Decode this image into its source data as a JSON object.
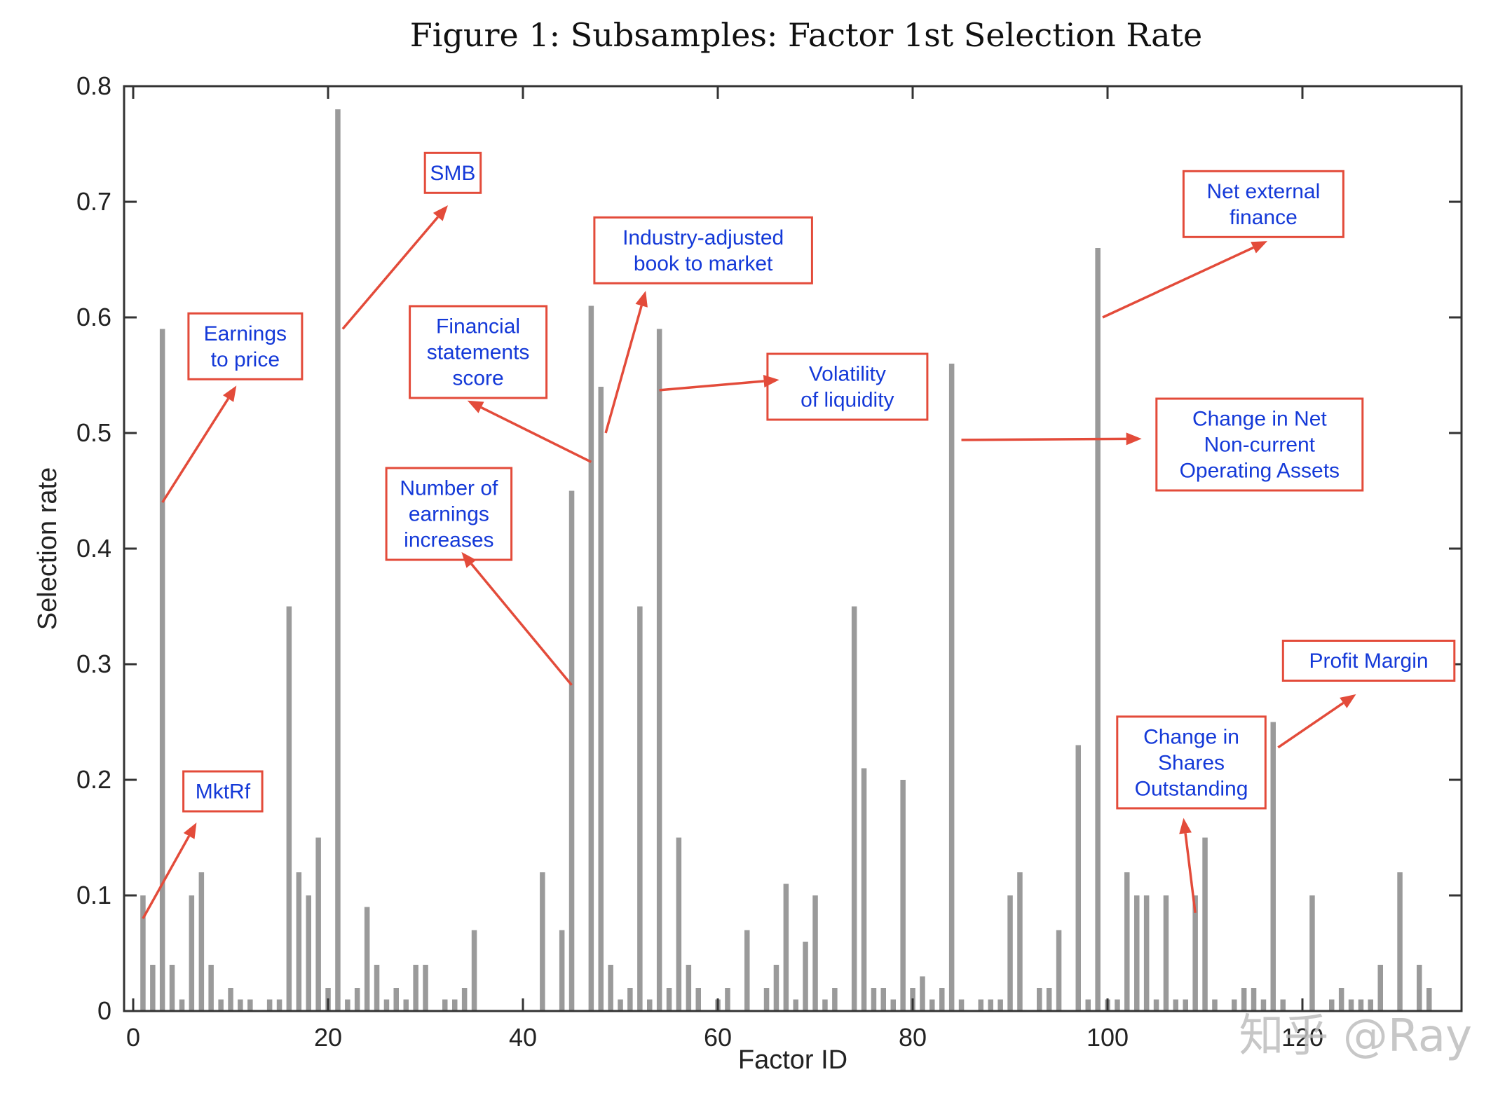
{
  "chart_data": {
    "type": "bar",
    "title": "Figure 1: Subsamples: Factor 1st Selection Rate",
    "xlabel": "Factor ID",
    "ylabel": "Selection rate",
    "xlim": [
      0,
      136
    ],
    "ylim": [
      0,
      0.8
    ],
    "xticks": [
      0,
      20,
      40,
      60,
      80,
      100,
      120
    ],
    "xtick_labels": [
      "0",
      "20",
      "40",
      "60",
      "80",
      "100",
      "120"
    ],
    "yticks": [
      0,
      0.1,
      0.2,
      0.3,
      0.4,
      0.5,
      0.6,
      0.7,
      0.8
    ],
    "ytick_labels": [
      "0",
      "0.1",
      "0.2",
      "0.3",
      "0.4",
      "0.5",
      "0.6",
      "0.7",
      "0.8"
    ],
    "grid": false,
    "bar_color": "#9a9a9a",
    "points": [
      {
        "x": 1,
        "y": 0.1
      },
      {
        "x": 2,
        "y": 0.04
      },
      {
        "x": 3,
        "y": 0.59
      },
      {
        "x": 4,
        "y": 0.04
      },
      {
        "x": 5,
        "y": 0.01
      },
      {
        "x": 6,
        "y": 0.1
      },
      {
        "x": 7,
        "y": 0.12
      },
      {
        "x": 8,
        "y": 0.04
      },
      {
        "x": 9,
        "y": 0.01
      },
      {
        "x": 10,
        "y": 0.02
      },
      {
        "x": 11,
        "y": 0.01
      },
      {
        "x": 12,
        "y": 0.01
      },
      {
        "x": 14,
        "y": 0.01
      },
      {
        "x": 15,
        "y": 0.01
      },
      {
        "x": 16,
        "y": 0.35
      },
      {
        "x": 17,
        "y": 0.12
      },
      {
        "x": 18,
        "y": 0.1
      },
      {
        "x": 19,
        "y": 0.15
      },
      {
        "x": 20,
        "y": 0.02
      },
      {
        "x": 21,
        "y": 0.78
      },
      {
        "x": 22,
        "y": 0.01
      },
      {
        "x": 23,
        "y": 0.02
      },
      {
        "x": 24,
        "y": 0.09
      },
      {
        "x": 25,
        "y": 0.04
      },
      {
        "x": 26,
        "y": 0.01
      },
      {
        "x": 27,
        "y": 0.02
      },
      {
        "x": 28,
        "y": 0.01
      },
      {
        "x": 29,
        "y": 0.04
      },
      {
        "x": 30,
        "y": 0.04
      },
      {
        "x": 32,
        "y": 0.01
      },
      {
        "x": 33,
        "y": 0.01
      },
      {
        "x": 34,
        "y": 0.02
      },
      {
        "x": 35,
        "y": 0.07
      },
      {
        "x": 42,
        "y": 0.12
      },
      {
        "x": 44,
        "y": 0.07
      },
      {
        "x": 45,
        "y": 0.45
      },
      {
        "x": 47,
        "y": 0.61
      },
      {
        "x": 48,
        "y": 0.54
      },
      {
        "x": 49,
        "y": 0.04
      },
      {
        "x": 50,
        "y": 0.01
      },
      {
        "x": 51,
        "y": 0.02
      },
      {
        "x": 52,
        "y": 0.35
      },
      {
        "x": 53,
        "y": 0.01
      },
      {
        "x": 54,
        "y": 0.59
      },
      {
        "x": 55,
        "y": 0.02
      },
      {
        "x": 56,
        "y": 0.15
      },
      {
        "x": 57,
        "y": 0.04
      },
      {
        "x": 58,
        "y": 0.02
      },
      {
        "x": 60,
        "y": 0.01
      },
      {
        "x": 61,
        "y": 0.02
      },
      {
        "x": 63,
        "y": 0.07
      },
      {
        "x": 65,
        "y": 0.02
      },
      {
        "x": 66,
        "y": 0.04
      },
      {
        "x": 67,
        "y": 0.11
      },
      {
        "x": 68,
        "y": 0.01
      },
      {
        "x": 69,
        "y": 0.06
      },
      {
        "x": 70,
        "y": 0.1
      },
      {
        "x": 71,
        "y": 0.01
      },
      {
        "x": 72,
        "y": 0.02
      },
      {
        "x": 74,
        "y": 0.35
      },
      {
        "x": 75,
        "y": 0.21
      },
      {
        "x": 76,
        "y": 0.02
      },
      {
        "x": 77,
        "y": 0.02
      },
      {
        "x": 78,
        "y": 0.01
      },
      {
        "x": 79,
        "y": 0.2
      },
      {
        "x": 80,
        "y": 0.02
      },
      {
        "x": 81,
        "y": 0.03
      },
      {
        "x": 82,
        "y": 0.01
      },
      {
        "x": 83,
        "y": 0.02
      },
      {
        "x": 84,
        "y": 0.56
      },
      {
        "x": 85,
        "y": 0.01
      },
      {
        "x": 87,
        "y": 0.01
      },
      {
        "x": 88,
        "y": 0.01
      },
      {
        "x": 89,
        "y": 0.01
      },
      {
        "x": 90,
        "y": 0.1
      },
      {
        "x": 91,
        "y": 0.12
      },
      {
        "x": 93,
        "y": 0.02
      },
      {
        "x": 94,
        "y": 0.02
      },
      {
        "x": 95,
        "y": 0.07
      },
      {
        "x": 97,
        "y": 0.23
      },
      {
        "x": 98,
        "y": 0.01
      },
      {
        "x": 99,
        "y": 0.66
      },
      {
        "x": 100,
        "y": 0.01
      },
      {
        "x": 101,
        "y": 0.01
      },
      {
        "x": 102,
        "y": 0.12
      },
      {
        "x": 103,
        "y": 0.1
      },
      {
        "x": 104,
        "y": 0.1
      },
      {
        "x": 105,
        "y": 0.01
      },
      {
        "x": 106,
        "y": 0.1
      },
      {
        "x": 107,
        "y": 0.01
      },
      {
        "x": 108,
        "y": 0.01
      },
      {
        "x": 109,
        "y": 0.1
      },
      {
        "x": 110,
        "y": 0.15
      },
      {
        "x": 111,
        "y": 0.01
      },
      {
        "x": 113,
        "y": 0.01
      },
      {
        "x": 114,
        "y": 0.02
      },
      {
        "x": 115,
        "y": 0.02
      },
      {
        "x": 116,
        "y": 0.01
      },
      {
        "x": 117,
        "y": 0.25
      },
      {
        "x": 118,
        "y": 0.01
      },
      {
        "x": 121,
        "y": 0.1
      },
      {
        "x": 123,
        "y": 0.01
      },
      {
        "x": 124,
        "y": 0.02
      },
      {
        "x": 125,
        "y": 0.01
      },
      {
        "x": 126,
        "y": 0.01
      },
      {
        "x": 127,
        "y": 0.01
      },
      {
        "x": 128,
        "y": 0.04
      },
      {
        "x": 130,
        "y": 0.12
      },
      {
        "x": 132,
        "y": 0.04
      },
      {
        "x": 133,
        "y": 0.02
      }
    ],
    "annotations": [
      {
        "name": "mktrf",
        "lines": [
          "MktRf"
        ],
        "target": {
          "x": 1,
          "y": 0.08
        },
        "head": {
          "x": 6.5,
          "y": 0.163
        },
        "box": {
          "x": 9.2,
          "y": 0.19
        }
      },
      {
        "name": "earnings-to-price",
        "lines": [
          "Earnings",
          "to price"
        ],
        "target": {
          "x": 3,
          "y": 0.44
        },
        "head": {
          "x": 10.6,
          "y": 0.541
        },
        "box": {
          "x": 11.5,
          "y": 0.575
        }
      },
      {
        "name": "smb",
        "lines": [
          "SMB"
        ],
        "target": {
          "x": 21.5,
          "y": 0.59
        },
        "head": {
          "x": 32.3,
          "y": 0.697
        },
        "box": {
          "x": 32.8,
          "y": 0.725
        }
      },
      {
        "name": "financial-statements-score",
        "lines": [
          "Financial",
          "statements",
          "score"
        ],
        "target": {
          "x": 47,
          "y": 0.475
        },
        "head": {
          "x": 34.3,
          "y": 0.528
        },
        "box": {
          "x": 35.4,
          "y": 0.57
        }
      },
      {
        "name": "industry-adjusted-book-to-market",
        "lines": [
          "Industry-adjusted",
          "book to market"
        ],
        "target": {
          "x": 48.5,
          "y": 0.5
        },
        "head": {
          "x": 52.6,
          "y": 0.623
        },
        "box": {
          "x": 58.5,
          "y": 0.658
        }
      },
      {
        "name": "volatility-of-liquidity",
        "lines": [
          "Volatility",
          "of liquidity"
        ],
        "target": {
          "x": 54,
          "y": 0.537
        },
        "head": {
          "x": 66.3,
          "y": 0.546
        },
        "box": {
          "x": 73.3,
          "y": 0.54
        }
      },
      {
        "name": "number-of-earnings-increases",
        "lines": [
          "Number of",
          "earnings",
          "increases"
        ],
        "target": {
          "x": 45,
          "y": 0.282
        },
        "head": {
          "x": 33.7,
          "y": 0.397
        },
        "box": {
          "x": 32.4,
          "y": 0.43
        }
      },
      {
        "name": "net-external-finance",
        "lines": [
          "Net external",
          "finance"
        ],
        "target": {
          "x": 99.5,
          "y": 0.6
        },
        "head": {
          "x": 116.4,
          "y": 0.666
        },
        "box": {
          "x": 116,
          "y": 0.698
        }
      },
      {
        "name": "change-in-net-non-current-operating-assets",
        "lines": [
          "Change in Net",
          "Non-current",
          "Operating Assets"
        ],
        "target": {
          "x": 85,
          "y": 0.494
        },
        "head": {
          "x": 103.5,
          "y": 0.495
        },
        "box": {
          "x": 115.6,
          "y": 0.49
        }
      },
      {
        "name": "change-in-shares-outstanding",
        "lines": [
          "Change in",
          "Shares",
          "Outstanding"
        ],
        "target": {
          "x": 109,
          "y": 0.085
        },
        "head": {
          "x": 107.8,
          "y": 0.167
        },
        "box": {
          "x": 108.6,
          "y": 0.215
        }
      },
      {
        "name": "profit-margin",
        "lines": [
          "Profit Margin"
        ],
        "target": {
          "x": 117.5,
          "y": 0.228
        },
        "head": {
          "x": 125.5,
          "y": 0.274
        },
        "box": {
          "x": 126.8,
          "y": 0.303
        }
      }
    ]
  },
  "watermark": "知乎 @Ray",
  "colors": {
    "bar": "#9a9a9a",
    "axis": "#333333",
    "annotation_border": "#e34b3a",
    "annotation_text": "#1439d8",
    "arrow": "#e34b3a"
  }
}
